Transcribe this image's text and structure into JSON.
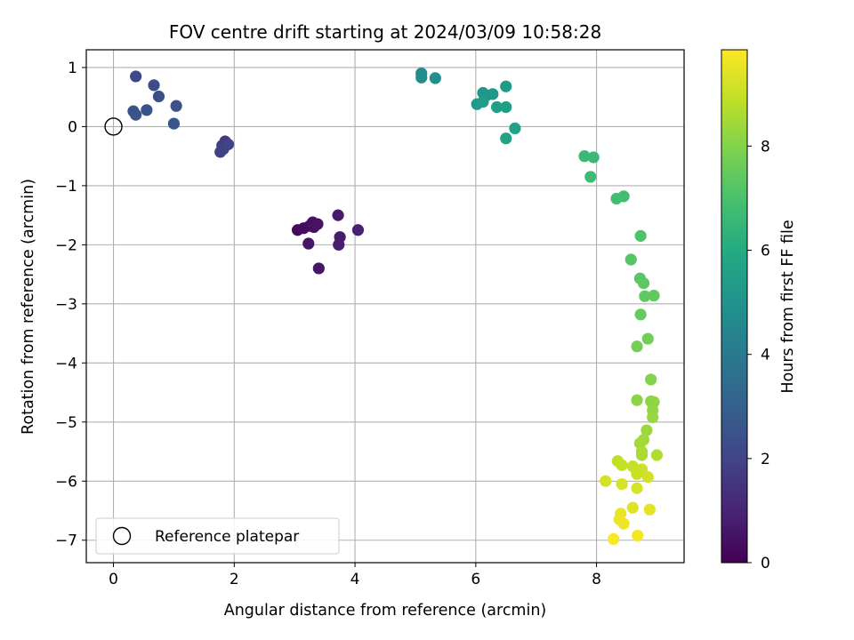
{
  "chart_data": {
    "type": "scatter",
    "title": "FOV centre drift starting at 2024/03/09 10:58:28",
    "xlabel": "Angular distance from reference (arcmin)",
    "ylabel": "Rotation from reference (arcmin)",
    "xlim": [
      -0.45,
      9.45
    ],
    "ylim": [
      -7.38,
      1.3
    ],
    "xticks": [
      "0",
      "2",
      "4",
      "6",
      "8"
    ],
    "yticks": [
      "1",
      "0",
      "−1",
      "−2",
      "−3",
      "−4",
      "−5",
      "−6",
      "−7"
    ],
    "grid": true,
    "legend": {
      "position": "lower-left",
      "entries": [
        "Reference platepar"
      ]
    },
    "reference_point": {
      "x": 0,
      "y": 0
    },
    "colorbar": {
      "label": "Hours from first FF file",
      "colormap": "viridis",
      "range": [
        0,
        9.85
      ],
      "ticks": [
        "0",
        "2",
        "4",
        "6",
        "8"
      ]
    },
    "series": [
      {
        "points": [
          {
            "x": 3.05,
            "y": -1.75,
            "c": 0.2
          },
          {
            "x": 3.15,
            "y": -1.72,
            "c": 0.3
          },
          {
            "x": 3.25,
            "y": -1.68,
            "c": 0.35
          },
          {
            "x": 3.3,
            "y": -1.62,
            "c": 0.4
          },
          {
            "x": 3.32,
            "y": -1.7,
            "c": 0.45
          },
          {
            "x": 3.38,
            "y": -1.65,
            "c": 0.5
          },
          {
            "x": 3.23,
            "y": -1.98,
            "c": 0.55
          },
          {
            "x": 3.4,
            "y": -2.4,
            "c": 0.6
          },
          {
            "x": 3.72,
            "y": -1.5,
            "c": 0.7
          },
          {
            "x": 3.75,
            "y": -1.87,
            "c": 0.75
          },
          {
            "x": 3.73,
            "y": -2.0,
            "c": 0.8
          },
          {
            "x": 4.05,
            "y": -1.75,
            "c": 0.9
          },
          {
            "x": 1.85,
            "y": -0.25,
            "c": 1.7
          },
          {
            "x": 1.8,
            "y": -0.32,
            "c": 1.8
          },
          {
            "x": 1.82,
            "y": -0.38,
            "c": 1.85
          },
          {
            "x": 1.77,
            "y": -0.43,
            "c": 1.9
          },
          {
            "x": 1.9,
            "y": -0.3,
            "c": 1.95
          },
          {
            "x": 0.37,
            "y": 0.85,
            "c": 2.2
          },
          {
            "x": 0.67,
            "y": 0.7,
            "c": 2.3
          },
          {
            "x": 0.75,
            "y": 0.51,
            "c": 2.35
          },
          {
            "x": 1.04,
            "y": 0.35,
            "c": 2.4
          },
          {
            "x": 0.55,
            "y": 0.28,
            "c": 2.45
          },
          {
            "x": 0.33,
            "y": 0.26,
            "c": 2.5
          },
          {
            "x": 0.37,
            "y": 0.2,
            "c": 2.55
          },
          {
            "x": 1.0,
            "y": 0.05,
            "c": 2.6
          },
          {
            "x": 5.1,
            "y": 0.9,
            "c": 4.7
          },
          {
            "x": 5.1,
            "y": 0.83,
            "c": 4.75
          },
          {
            "x": 5.33,
            "y": 0.82,
            "c": 4.85
          },
          {
            "x": 6.12,
            "y": 0.57,
            "c": 5.1
          },
          {
            "x": 6.18,
            "y": 0.53,
            "c": 5.15
          },
          {
            "x": 6.28,
            "y": 0.55,
            "c": 5.2
          },
          {
            "x": 6.5,
            "y": 0.68,
            "c": 5.3
          },
          {
            "x": 6.02,
            "y": 0.38,
            "c": 5.35
          },
          {
            "x": 6.12,
            "y": 0.42,
            "c": 5.4
          },
          {
            "x": 6.35,
            "y": 0.33,
            "c": 5.45
          },
          {
            "x": 6.5,
            "y": 0.33,
            "c": 5.5
          },
          {
            "x": 6.65,
            "y": -0.03,
            "c": 5.6
          },
          {
            "x": 6.5,
            "y": -0.2,
            "c": 5.65
          },
          {
            "x": 7.8,
            "y": -0.5,
            "c": 6.6
          },
          {
            "x": 7.95,
            "y": -0.52,
            "c": 6.65
          },
          {
            "x": 7.9,
            "y": -0.85,
            "c": 6.7
          },
          {
            "x": 8.45,
            "y": -1.18,
            "c": 6.8
          },
          {
            "x": 8.33,
            "y": -1.22,
            "c": 6.85
          },
          {
            "x": 8.73,
            "y": -1.85,
            "c": 7.1
          },
          {
            "x": 8.57,
            "y": -2.25,
            "c": 7.2
          },
          {
            "x": 8.72,
            "y": -2.57,
            "c": 7.3
          },
          {
            "x": 8.78,
            "y": -2.65,
            "c": 7.35
          },
          {
            "x": 8.8,
            "y": -2.87,
            "c": 7.4
          },
          {
            "x": 8.95,
            "y": -2.86,
            "c": 7.45
          },
          {
            "x": 8.73,
            "y": -3.18,
            "c": 7.5
          },
          {
            "x": 8.85,
            "y": -3.59,
            "c": 7.7
          },
          {
            "x": 8.67,
            "y": -3.72,
            "c": 7.75
          },
          {
            "x": 8.9,
            "y": -4.28,
            "c": 8.0
          },
          {
            "x": 8.67,
            "y": -4.63,
            "c": 8.1
          },
          {
            "x": 8.9,
            "y": -4.65,
            "c": 8.15
          },
          {
            "x": 8.95,
            "y": -4.66,
            "c": 8.2
          },
          {
            "x": 8.93,
            "y": -4.8,
            "c": 8.25
          },
          {
            "x": 8.93,
            "y": -4.92,
            "c": 8.3
          },
          {
            "x": 8.83,
            "y": -5.14,
            "c": 8.4
          },
          {
            "x": 8.78,
            "y": -5.3,
            "c": 8.45
          },
          {
            "x": 8.72,
            "y": -5.36,
            "c": 8.5
          },
          {
            "x": 8.75,
            "y": -5.5,
            "c": 8.55
          },
          {
            "x": 8.75,
            "y": -5.56,
            "c": 8.6
          },
          {
            "x": 9.0,
            "y": -5.56,
            "c": 8.65
          },
          {
            "x": 8.35,
            "y": -5.66,
            "c": 8.9
          },
          {
            "x": 8.42,
            "y": -5.73,
            "c": 8.95
          },
          {
            "x": 8.6,
            "y": -5.75,
            "c": 9.0
          },
          {
            "x": 8.75,
            "y": -5.8,
            "c": 9.05
          },
          {
            "x": 8.67,
            "y": -5.88,
            "c": 9.1
          },
          {
            "x": 8.85,
            "y": -5.93,
            "c": 9.15
          },
          {
            "x": 8.15,
            "y": -6.0,
            "c": 9.2
          },
          {
            "x": 8.42,
            "y": -6.05,
            "c": 9.25
          },
          {
            "x": 8.67,
            "y": -6.12,
            "c": 9.3
          },
          {
            "x": 8.6,
            "y": -6.45,
            "c": 9.4
          },
          {
            "x": 8.88,
            "y": -6.48,
            "c": 9.45
          },
          {
            "x": 8.4,
            "y": -6.55,
            "c": 9.5
          },
          {
            "x": 8.38,
            "y": -6.65,
            "c": 9.55
          },
          {
            "x": 8.45,
            "y": -6.72,
            "c": 9.6
          },
          {
            "x": 8.68,
            "y": -6.92,
            "c": 9.7
          },
          {
            "x": 8.28,
            "y": -6.98,
            "c": 9.8
          }
        ]
      }
    ]
  }
}
